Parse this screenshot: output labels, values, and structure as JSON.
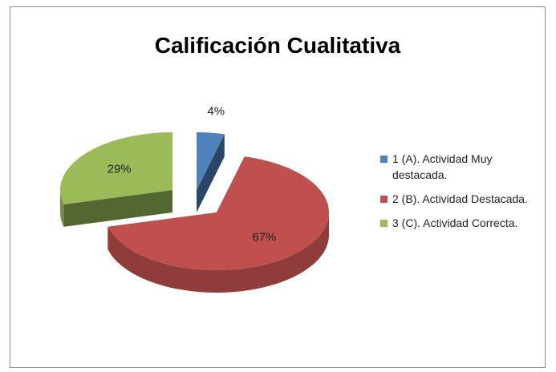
{
  "chart_data": {
    "type": "pie",
    "title": "Calificación Cualitativa",
    "categories": [
      "1 (A). Actividad Muy destacada.",
      "2 (B). Actividad Destacada.",
      "3 (C). Actividad Correcta."
    ],
    "values": [
      4,
      67,
      29
    ],
    "value_labels": [
      "4%",
      "67%",
      "29%"
    ],
    "colors": [
      "#4f81bd",
      "#c0504d",
      "#9bbb59"
    ],
    "legend": "right"
  }
}
